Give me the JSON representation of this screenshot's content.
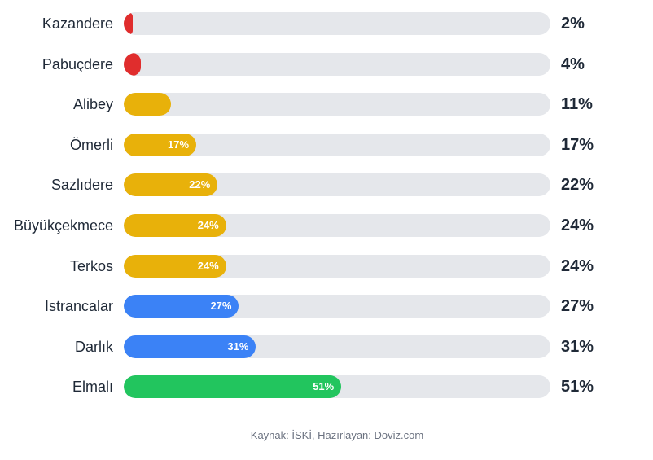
{
  "chart_data": {
    "type": "bar",
    "orientation": "horizontal",
    "categories": [
      "Kazandere",
      "Pabuçdere",
      "Alibey",
      "Ömerli",
      "Sazlıdere",
      "Büyükçekmece",
      "Terkos",
      "Istrancalar",
      "Darlık",
      "Elmalı"
    ],
    "values": [
      2,
      4,
      11,
      17,
      22,
      24,
      24,
      27,
      31,
      51
    ],
    "value_labels": [
      "2%",
      "4%",
      "11%",
      "17%",
      "22%",
      "24%",
      "24%",
      "27%",
      "31%",
      "51%"
    ],
    "inner_labels": [
      "",
      "",
      "",
      "17%",
      "22%",
      "24%",
      "24%",
      "27%",
      "31%",
      "51%"
    ],
    "bar_colors": [
      "#e02d2d",
      "#e02d2d",
      "#e8b10a",
      "#e8b10a",
      "#e8b10a",
      "#e8b10a",
      "#e8b10a",
      "#3b82f6",
      "#3b82f6",
      "#22c55e"
    ],
    "track_color": "#e5e7eb",
    "xlim": [
      0,
      100
    ],
    "unit": "%",
    "grid": false
  },
  "source": "Kaynak: İSKİ, Hazırlayan: Doviz.com"
}
